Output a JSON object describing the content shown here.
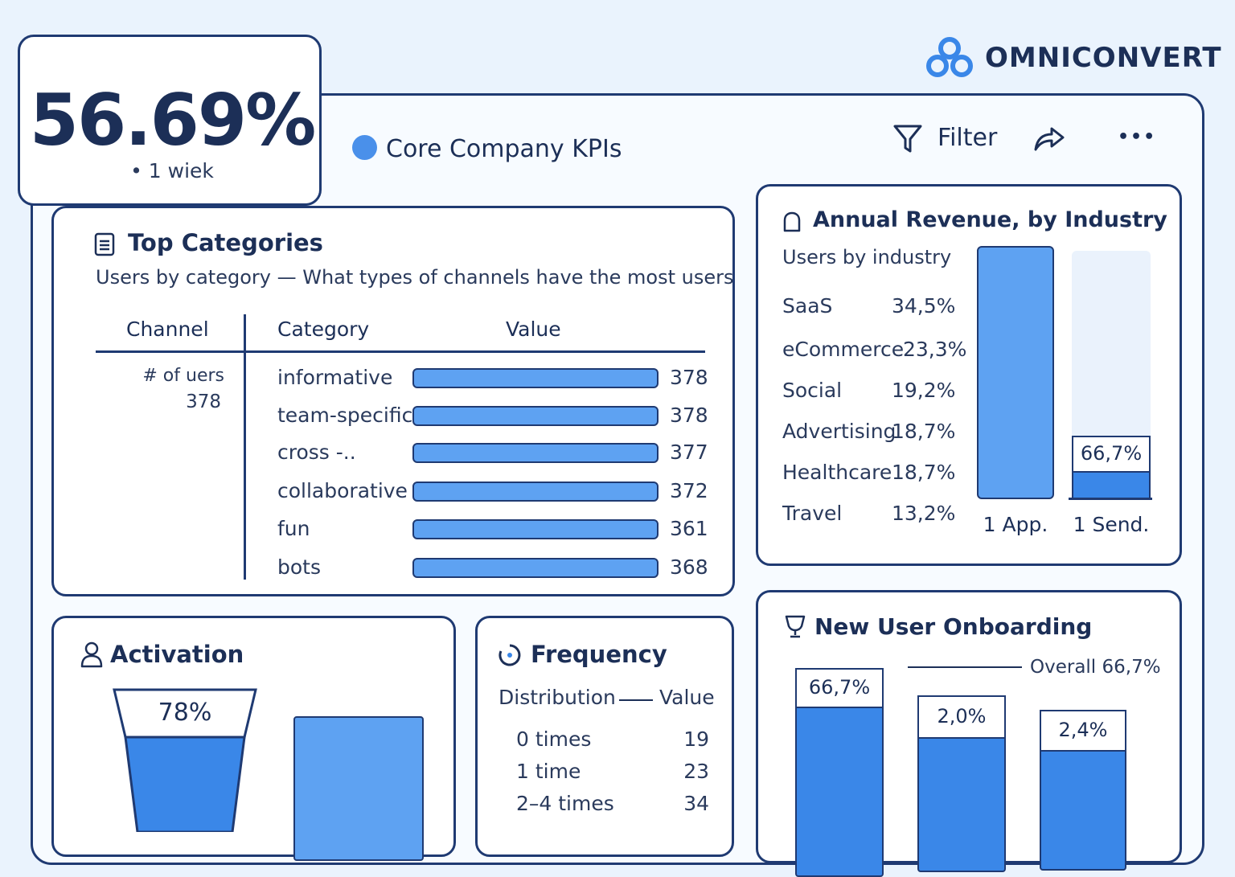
{
  "brand": {
    "name": "OMNICONVERT"
  },
  "kpi": {
    "value": "56.69%",
    "subtitle": "• 1 wiek"
  },
  "header": {
    "title": "Core Company KPIs",
    "filter_label": "Filter",
    "more_label": "•••"
  },
  "top_categories": {
    "title": "Top Categories",
    "subtitle": "Users by category — What types of channels have the most users",
    "columns": {
      "channel": "Channel",
      "category": "Category",
      "value": "Value"
    },
    "channel_label": "# of uers",
    "channel_value": "378",
    "rows": [
      {
        "label": "informative",
        "value": "378",
        "fill": 1.0
      },
      {
        "label": "team-specific",
        "value": "378",
        "fill": 1.0
      },
      {
        "label": "cross -..",
        "value": "377",
        "fill": 1.0
      },
      {
        "label": "collaborative",
        "value": "372",
        "fill": 1.0
      },
      {
        "label": "fun",
        "value": "361",
        "fill": 1.0
      },
      {
        "label": "bots",
        "value": "368",
        "fill": 1.0
      }
    ]
  },
  "revenue": {
    "title": "Annual Revenue, by Industry",
    "subtitle": "Users by industry",
    "rows": [
      {
        "label": "SaaS",
        "value": "34,5%"
      },
      {
        "label": "eCommerce",
        "value": "23,3%"
      },
      {
        "label": "Social",
        "value": "19,2%"
      },
      {
        "label": "Advertising",
        "value": "18,7%"
      },
      {
        "label": "Healthcare",
        "value": "18,7%"
      },
      {
        "label": "Travel",
        "value": "13,2%"
      }
    ],
    "bars": [
      {
        "label": "1 App.",
        "fill": 1.0
      },
      {
        "label": "1 Send.",
        "fill": 0.12,
        "value_label": "66,7%"
      }
    ]
  },
  "activation": {
    "title": "Activation",
    "funnel_value": "78%"
  },
  "frequency": {
    "title": "Frequency",
    "col_distribution": "Distribution",
    "col_value": "Value",
    "rows": [
      {
        "label": "0 times",
        "value": "19"
      },
      {
        "label": "1 time",
        "value": "23"
      },
      {
        "label": "2–4 times",
        "value": "34"
      }
    ]
  },
  "onboarding": {
    "title": "New User Onboarding",
    "overall_label": "Overall 66,7%",
    "bars": [
      {
        "value_label": "66,7%"
      },
      {
        "value_label": "2,0%"
      },
      {
        "value_label": "2,4%"
      }
    ]
  },
  "colors": {
    "accent": "#5ea2f2",
    "accent_dark": "#3a87e8",
    "ink": "#1c2f57",
    "border": "#1f3a72",
    "bg": "#eaf3fd"
  }
}
